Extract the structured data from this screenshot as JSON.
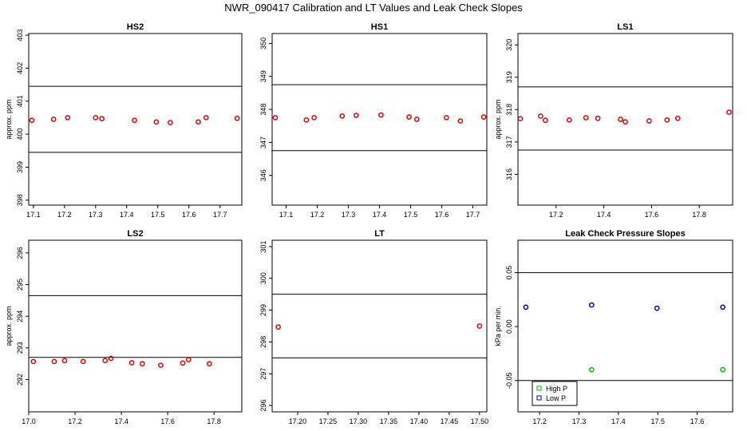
{
  "title": "NWR_090417  Calibration and LT Values and Leak Check Slopes",
  "chart_data": [
    {
      "type": "scatter",
      "title": "HS2",
      "ylabel": "approx. ppm",
      "xlim": [
        17.085,
        17.77
      ],
      "ylim": [
        397.85,
        403.05
      ],
      "xticks": [
        17.1,
        17.2,
        17.3,
        17.4,
        17.5,
        17.6,
        17.7
      ],
      "xtick_labels": [
        "17.1",
        "17.2",
        "17.3",
        "17.4",
        "17.5",
        "17.6",
        "17.7"
      ],
      "yticks": [
        398,
        399,
        400,
        401,
        402,
        403
      ],
      "ytick_labels": [
        "398",
        "399",
        "400",
        "401",
        "402",
        "403"
      ],
      "hlines": [
        401.45,
        399.45
      ],
      "series": [
        {
          "color": "#dd0000",
          "marker": "circle",
          "x": [
            17.095,
            17.165,
            17.21,
            17.3,
            17.32,
            17.425,
            17.495,
            17.54,
            17.63,
            17.655,
            17.755
          ],
          "y": [
            400.42,
            400.45,
            400.5,
            400.5,
            400.47,
            400.42,
            400.37,
            400.35,
            400.37,
            400.5,
            400.48
          ]
        }
      ]
    },
    {
      "type": "scatter",
      "title": "HS1",
      "ylabel": "",
      "xlim": [
        17.055,
        17.745
      ],
      "ylim": [
        345.1,
        350.3
      ],
      "xticks": [
        17.1,
        17.2,
        17.3,
        17.4,
        17.5,
        17.6,
        17.7
      ],
      "xtick_labels": [
        "17.1",
        "17.2",
        "17.3",
        "17.4",
        "17.5",
        "17.6",
        "17.7"
      ],
      "yticks": [
        346,
        347,
        348,
        349,
        350
      ],
      "ytick_labels": [
        "346",
        "347",
        "348",
        "349",
        "350"
      ],
      "hlines": [
        348.75,
        346.75
      ],
      "series": [
        {
          "color": "#dd0000",
          "marker": "circle",
          "x": [
            17.065,
            17.165,
            17.19,
            17.28,
            17.325,
            17.405,
            17.495,
            17.52,
            17.615,
            17.66,
            17.735
          ],
          "y": [
            347.75,
            347.68,
            347.75,
            347.8,
            347.82,
            347.83,
            347.77,
            347.7,
            347.75,
            347.65,
            347.77
          ]
        }
      ]
    },
    {
      "type": "scatter",
      "title": "LS1",
      "ylabel": "approx. ppm",
      "xlim": [
        17.04,
        17.94
      ],
      "ylim": [
        315.05,
        320.35
      ],
      "xticks": [
        17.2,
        17.4,
        17.6,
        17.8
      ],
      "xtick_labels": [
        "17.2",
        "17.4",
        "17.6",
        "17.8"
      ],
      "yticks": [
        316,
        317,
        318,
        319,
        320
      ],
      "ytick_labels": [
        "316",
        "317",
        "318",
        "319",
        "320"
      ],
      "hlines": [
        318.7,
        316.75
      ],
      "series": [
        {
          "color": "#dd0000",
          "marker": "circle",
          "x": [
            17.05,
            17.135,
            17.155,
            17.255,
            17.325,
            17.375,
            17.47,
            17.49,
            17.59,
            17.665,
            17.71,
            17.925
          ],
          "y": [
            317.72,
            317.8,
            317.67,
            317.68,
            317.75,
            317.73,
            317.7,
            317.62,
            317.65,
            317.68,
            317.73,
            317.92
          ]
        }
      ]
    },
    {
      "type": "scatter",
      "title": "LS2",
      "ylabel": "approx. ppm",
      "xlim": [
        17.0,
        17.92
      ],
      "ylim": [
        290.98,
        296.4
      ],
      "xticks": [
        17.0,
        17.2,
        17.4,
        17.6,
        17.8
      ],
      "xtick_labels": [
        "17.0",
        "17.2",
        "17.4",
        "17.6",
        "17.8"
      ],
      "yticks": [
        292,
        293,
        294,
        295,
        296
      ],
      "ytick_labels": [
        "292",
        "293",
        "294",
        "295",
        "296"
      ],
      "hlines": [
        294.65,
        292.7
      ],
      "series": [
        {
          "color": "#dd0000",
          "marker": "circle",
          "x": [
            17.02,
            17.11,
            17.155,
            17.235,
            17.33,
            17.355,
            17.445,
            17.49,
            17.57,
            17.665,
            17.69,
            17.78
          ],
          "y": [
            292.57,
            292.57,
            292.6,
            292.57,
            292.6,
            292.67,
            292.53,
            292.5,
            292.45,
            292.52,
            292.63,
            292.5
          ]
        }
      ]
    },
    {
      "type": "scatter",
      "title": "LT",
      "ylabel": "",
      "xlim": [
        17.158,
        17.512
      ],
      "ylim": [
        295.8,
        301.2
      ],
      "xticks": [
        17.2,
        17.25,
        17.3,
        17.35,
        17.4,
        17.45,
        17.5
      ],
      "xtick_labels": [
        "17.20",
        "17.25",
        "17.30",
        "17.35",
        "17.40",
        "17.45",
        "17.50"
      ],
      "yticks": [
        296,
        297,
        298,
        299,
        300,
        301
      ],
      "ytick_labels": [
        "296",
        "297",
        "298",
        "299",
        "300",
        "301"
      ],
      "hlines": [
        299.5,
        297.5
      ],
      "series": [
        {
          "color": "#dd0000",
          "marker": "circle",
          "x": [
            17.168,
            17.5
          ],
          "y": [
            298.47,
            298.5
          ]
        }
      ]
    },
    {
      "type": "scatter",
      "title": "Leak Check Pressure Slopes",
      "ylabel": "kPa per min.",
      "xlim": [
        17.145,
        17.69
      ],
      "ylim": [
        -0.079,
        0.08
      ],
      "xticks": [
        17.2,
        17.3,
        17.4,
        17.5,
        17.6
      ],
      "xtick_labels": [
        "17.2",
        "17.3",
        "17.4",
        "17.5",
        "17.6"
      ],
      "yticks": [
        -0.05,
        0.0,
        0.05
      ],
      "ytick_labels": [
        "-0.05",
        "0.00",
        "0.05"
      ],
      "hlines": [
        0.05,
        -0.05
      ],
      "legend": {
        "position": "bottom-left",
        "entries": [
          "High P",
          "Low P"
        ]
      },
      "series": [
        {
          "name": "High P",
          "color": "#00bb00",
          "marker": "circle",
          "x": [
            17.332,
            17.665
          ],
          "y": [
            -0.04,
            -0.04
          ]
        },
        {
          "name": "Low P",
          "color": "#0000cc",
          "marker": "circle",
          "x": [
            17.165,
            17.332,
            17.498,
            17.665
          ],
          "y": [
            0.018,
            0.02,
            0.017,
            0.018
          ]
        }
      ]
    }
  ]
}
